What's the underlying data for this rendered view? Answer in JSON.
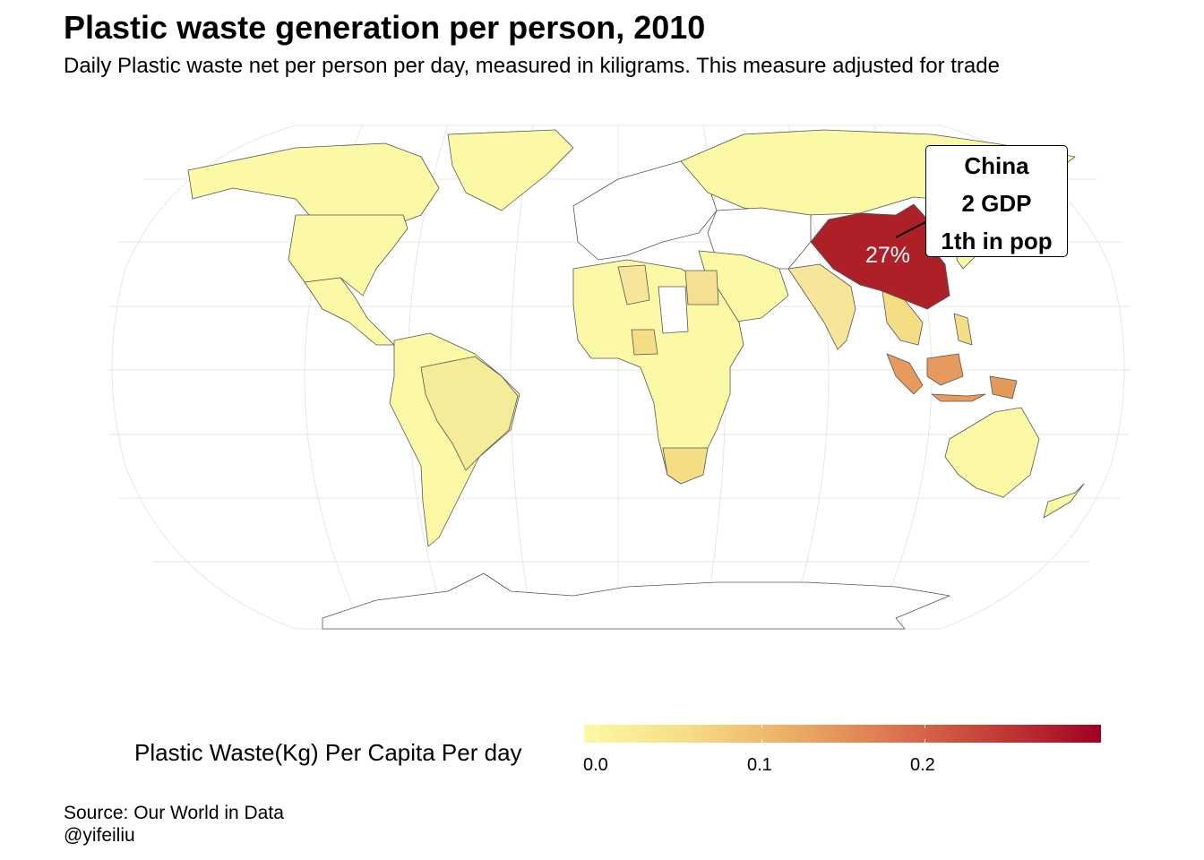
{
  "title": "Plastic waste generation per person, 2010",
  "subtitle": "Daily Plastic waste net per person per day, measured in kiligrams. This measure adjusted for trade",
  "legend": {
    "title": "Plastic Waste(Kg) Per Capita Per day",
    "ticks": [
      "0.0",
      "0.1",
      "0.2"
    ],
    "colors": {
      "low": "#fbf9a5",
      "high": "#9e0022"
    }
  },
  "annotation": {
    "country": "China",
    "line1": "China",
    "line2": "2 GDP",
    "line3": "1th in pop",
    "share_label": "27%"
  },
  "source": {
    "line1": "Source: Our World in Data",
    "line2": "@yifeiliu"
  },
  "chart_data": {
    "type": "choropleth",
    "color_scale": {
      "min": 0.0,
      "max": 0.3,
      "low_color": "#fbf9a5",
      "high_color": "#9e0022"
    },
    "regions": [
      {
        "name": "China",
        "value": 0.27
      },
      {
        "name": "Indonesia",
        "value": 0.12
      },
      {
        "name": "Malaysia",
        "value": 0.13
      },
      {
        "name": "Egypt",
        "value": 0.06
      },
      {
        "name": "India",
        "value": 0.05
      },
      {
        "name": "Brazil",
        "value": 0.04
      },
      {
        "name": "Nigeria",
        "value": 0.06
      }
    ]
  }
}
